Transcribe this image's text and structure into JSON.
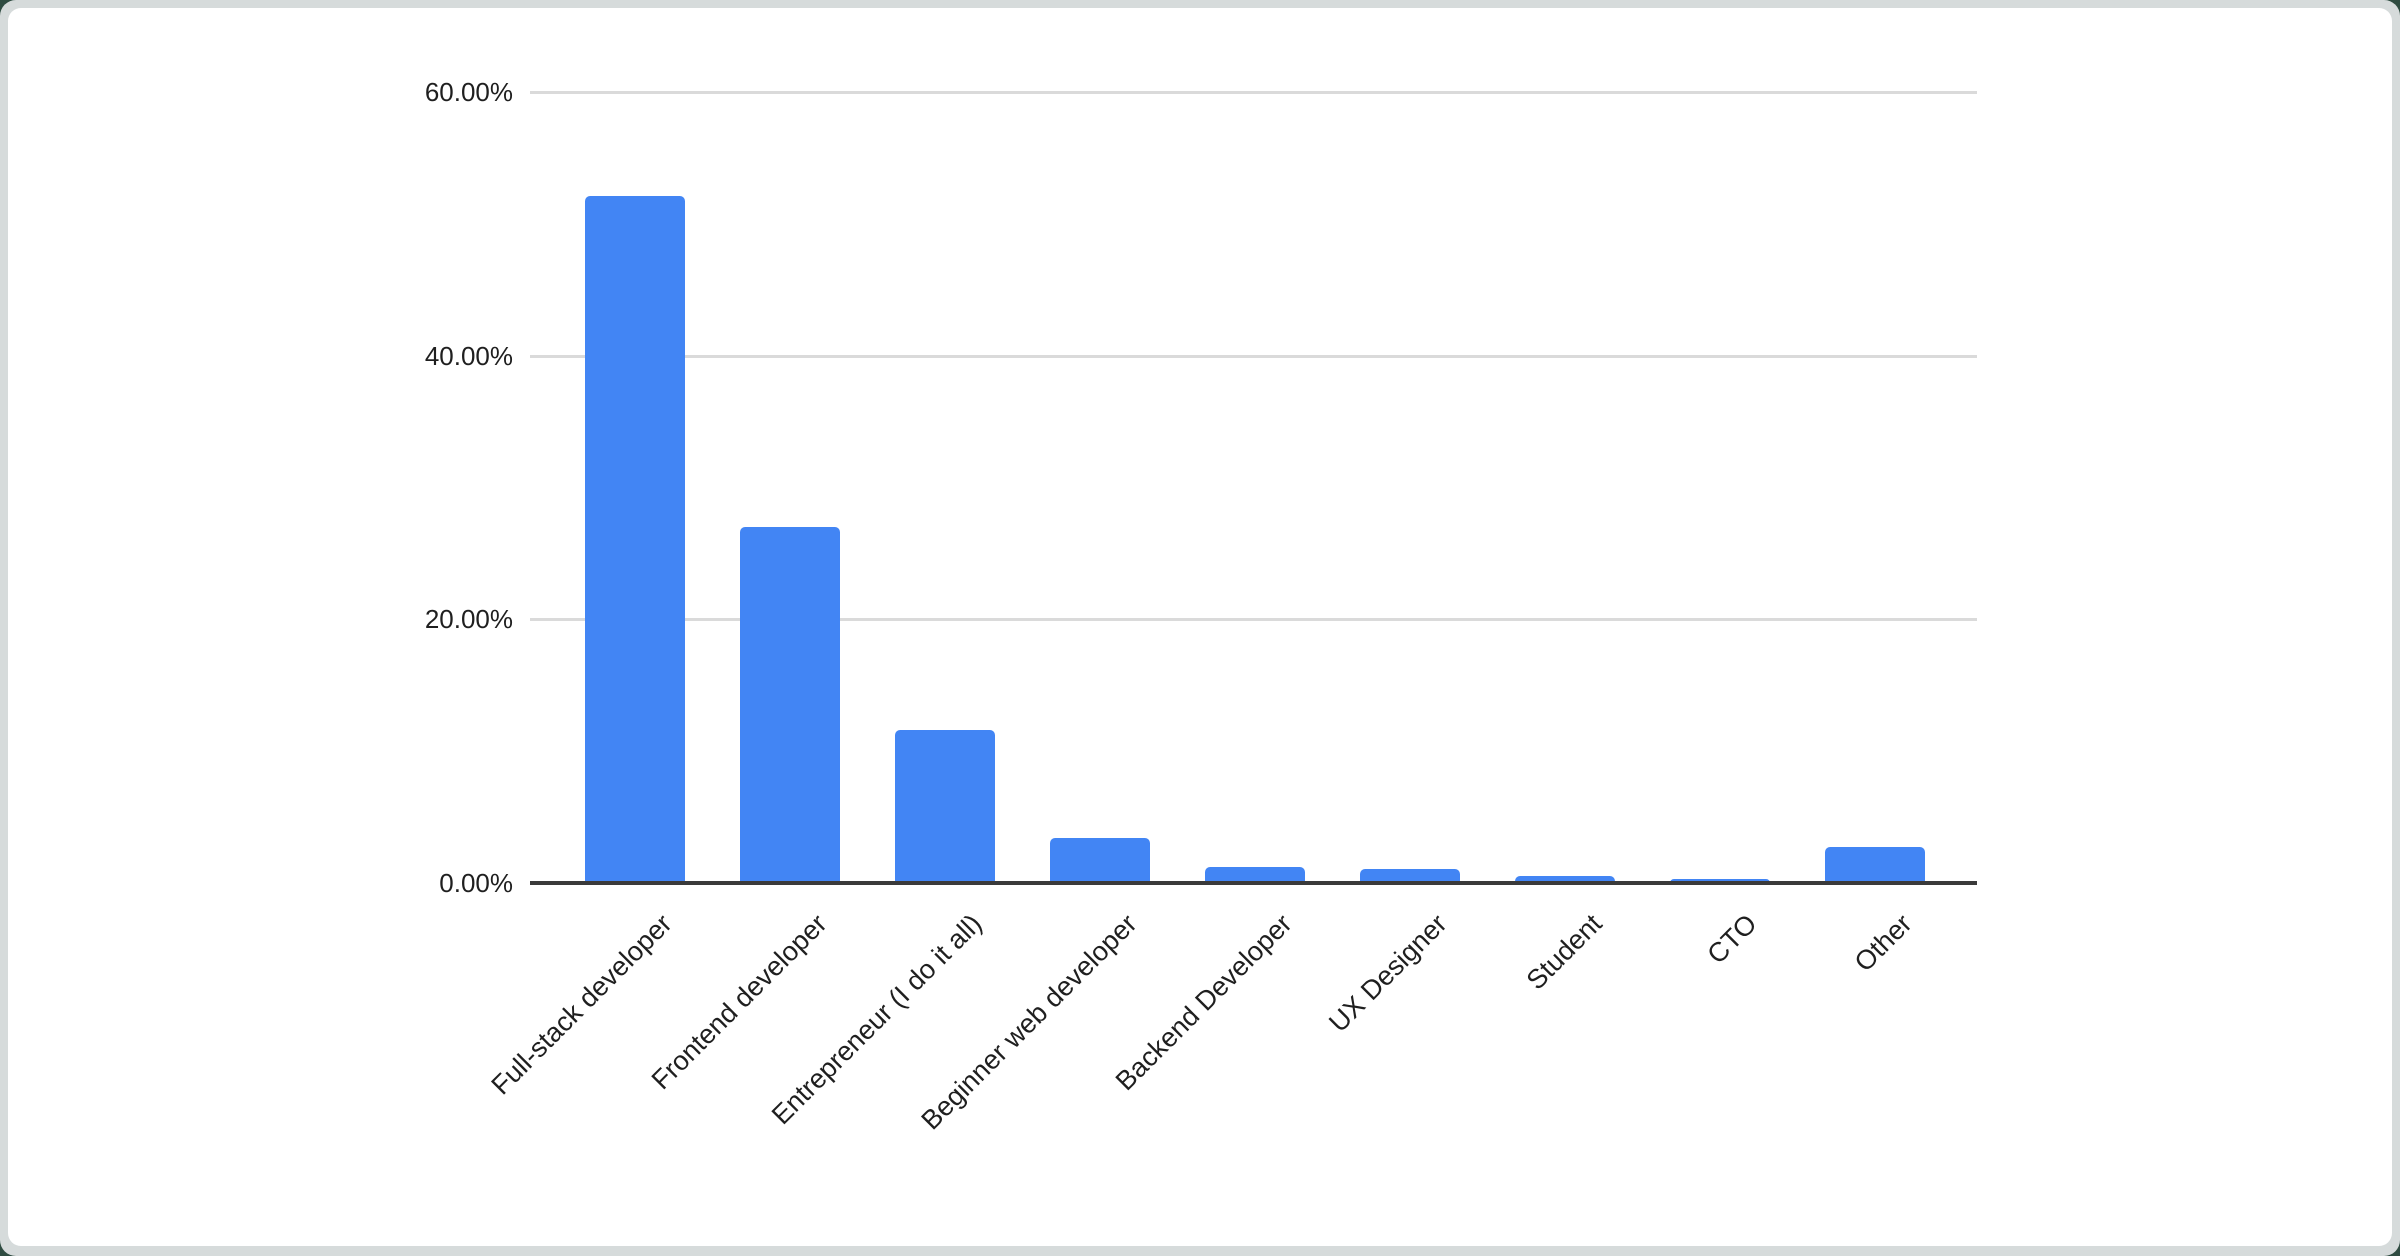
{
  "page": {
    "background_color": "#d6dbdb",
    "card_background_color": "#ffffff"
  },
  "chart_data": {
    "type": "bar",
    "title": "",
    "xlabel": "",
    "ylabel": "",
    "legend": "none",
    "grid": "horizontal",
    "categories": [
      "Full-stack developer",
      "Frontend developer",
      "Entrepreneur (I do it all)",
      "Beginner web developer",
      "Backend Developer",
      "UX Designer",
      "Student",
      "CTO",
      "Other"
    ],
    "values": [
      52.1,
      27.0,
      11.6,
      3.4,
      1.2,
      1.1,
      0.5,
      0.3,
      2.7
    ],
    "value_unit": "%",
    "ylim": [
      0,
      60
    ],
    "y_tick_values": [
      0,
      20,
      40,
      60
    ],
    "y_tick_labels": [
      "0.00%",
      "20.00%",
      "40.00%",
      "60.00%"
    ],
    "x_label_rotation_deg": -45,
    "bar_color": "#4285F4",
    "gridline_color": "#dadada",
    "axis_line_color": "#3a3a3a",
    "text_color": "#1f1f1f"
  }
}
